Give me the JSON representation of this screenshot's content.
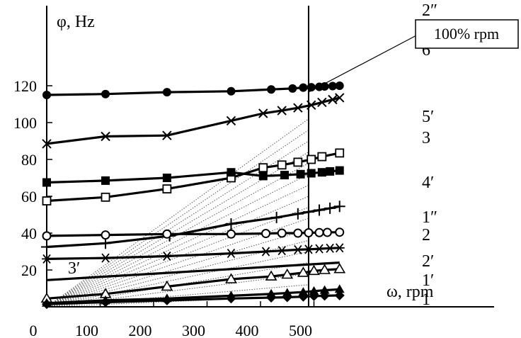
{
  "chart_data": {
    "type": "line",
    "xlabel": "ω, rpm",
    "ylabel": "φ, Hz",
    "xlim": [
      0,
      600
    ],
    "ylim": [
      0,
      130
    ],
    "xticks": [
      0,
      100,
      200,
      300,
      400,
      500
    ],
    "yticks": [
      20,
      40,
      60,
      80,
      100,
      120
    ],
    "grid": false,
    "annotation": {
      "text": "100% rpm",
      "x": 490
    },
    "series": [
      {
        "name": "2″",
        "marker": "filled-circle",
        "x": [
          0,
          110,
          225,
          345,
          420,
          460,
          480,
          495,
          510,
          520,
          535,
          548
        ],
        "y": [
          115,
          115.5,
          116.5,
          117,
          118,
          118.5,
          119,
          119.2,
          119.4,
          119.6,
          119.8,
          120
        ]
      },
      {
        "name": "6′",
        "marker": "x",
        "x": [
          0,
          110,
          225,
          345,
          405,
          440,
          470,
          495,
          515,
          535,
          548
        ],
        "y": [
          88.5,
          92.5,
          93,
          101,
          105,
          106.5,
          108,
          109.5,
          111,
          112.5,
          113.5
        ]
      },
      {
        "name": "5′",
        "marker": "open-square",
        "x": [
          0,
          110,
          225,
          345,
          405,
          440,
          470,
          495,
          515,
          548
        ],
        "y": [
          57.5,
          59.5,
          64,
          70,
          75.5,
          77,
          78.5,
          80,
          81.5,
          83.5
        ]
      },
      {
        "name": "3",
        "marker": "filled-square",
        "x": [
          0,
          110,
          225,
          345,
          405,
          445,
          475,
          495,
          515,
          530,
          548
        ],
        "y": [
          67.5,
          68.5,
          70,
          73,
          71,
          71.5,
          72,
          72.5,
          73,
          73.5,
          74
        ]
      },
      {
        "name": "4′",
        "marker": "plus",
        "x": [
          0,
          110,
          230,
          345,
          430,
          470,
          490,
          510,
          530,
          548
        ],
        "y": [
          32.5,
          34.5,
          38.5,
          45,
          48.5,
          50.5,
          51.5,
          52.5,
          53.5,
          54.5
        ]
      },
      {
        "name": "1″",
        "marker": "open-circle",
        "x": [
          0,
          110,
          225,
          345,
          410,
          440,
          470,
          490,
          510,
          525,
          548
        ],
        "y": [
          38.5,
          39,
          39.5,
          39.5,
          39.8,
          40,
          40,
          40.2,
          40.3,
          40.4,
          40.5
        ]
      },
      {
        "name": "2",
        "marker": "asterisk",
        "x": [
          0,
          110,
          225,
          345,
          410,
          440,
          470,
          490,
          510,
          530,
          548
        ],
        "y": [
          26,
          26.5,
          27.5,
          29,
          30,
          30.5,
          31,
          31.2,
          31.5,
          31.8,
          32
        ]
      },
      {
        "name": "3′",
        "marker": "none",
        "x": [
          0,
          548
        ],
        "y": [
          14.5,
          24
        ]
      },
      {
        "name": "2′",
        "marker": "open-triangle",
        "x": [
          0,
          110,
          225,
          345,
          420,
          450,
          480,
          500,
          520,
          548
        ],
        "y": [
          4.5,
          7,
          11,
          15,
          16.5,
          17.5,
          18.5,
          19.5,
          20,
          20.5
        ]
      },
      {
        "name": "1′",
        "marker": "filled-triangle",
        "x": [
          0,
          110,
          225,
          345,
          420,
          450,
          480,
          500,
          520,
          548
        ],
        "y": [
          2,
          3.5,
          4.5,
          6,
          7,
          7.5,
          8,
          8.5,
          9,
          9.5
        ]
      },
      {
        "name": "1",
        "marker": "filled-diamond",
        "x": [
          0,
          110,
          225,
          345,
          420,
          450,
          480,
          500,
          520,
          548
        ],
        "y": [
          1.5,
          2.5,
          3.5,
          4.5,
          5,
          5.2,
          5.5,
          5.8,
          6,
          6.2
        ]
      }
    ],
    "reference_lines": {
      "origin": [
        0,
        0
      ],
      "end_y_at_100pct": [
        6,
        12,
        18,
        24,
        30,
        36,
        42,
        48,
        54,
        60,
        66,
        72,
        78,
        84,
        90,
        96,
        102
      ]
    }
  }
}
